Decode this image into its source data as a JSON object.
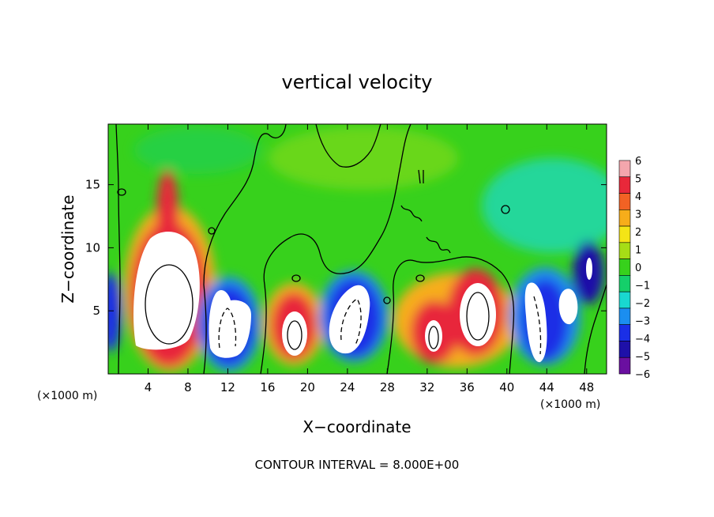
{
  "chart_data": {
    "type": "heatmap",
    "title": "vertical velocity",
    "xlabel": "X−coordinate",
    "ylabel": "Z−coordinate",
    "x_unit_left": "(×1000 m)",
    "x_unit_right": "(×1000 m)",
    "xlim": [
      0,
      50
    ],
    "ylim": [
      0,
      19.8
    ],
    "x_ticks": [
      4,
      8,
      12,
      16,
      20,
      24,
      28,
      32,
      36,
      40,
      44,
      48
    ],
    "y_ticks": [
      5,
      10,
      15
    ],
    "colorbar": {
      "levels": [
        "6",
        "5",
        "4",
        "3",
        "2",
        "1",
        "0",
        "−1",
        "−2",
        "−3",
        "−4",
        "−5",
        "−6"
      ],
      "colors": [
        "#f4a6ad",
        "#e8283a",
        "#f26224",
        "#f7ad1a",
        "#f4e416",
        "#a6dd16",
        "#37d11c",
        "#15cf6a",
        "#19d8d0",
        "#1b8ef0",
        "#1a2fe6",
        "#1e10a8",
        "#6a0fa0"
      ]
    },
    "features": [
      {
        "kind": "updraft",
        "x": 6,
        "z": 5,
        "peak": 6
      },
      {
        "kind": "downdraft",
        "x": 12,
        "z": 3,
        "peak": -6
      },
      {
        "kind": "updraft",
        "x": 18.5,
        "z": 3.5,
        "peak": 6
      },
      {
        "kind": "downdraft",
        "x": 24,
        "z": 4,
        "peak": -6
      },
      {
        "kind": "updraft",
        "x": 32,
        "z": 3,
        "peak": 6
      },
      {
        "kind": "updraft",
        "x": 36.5,
        "z": 5,
        "peak": 6
      },
      {
        "kind": "downdraft",
        "x": 43,
        "z": 3.5,
        "peak": -6
      }
    ],
    "footer": "CONTOUR INTERVAL = 8.000E+00"
  }
}
